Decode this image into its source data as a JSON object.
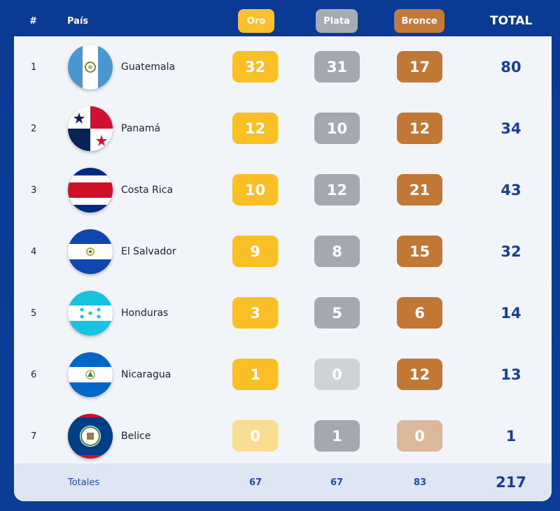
{
  "header": {
    "rank": "#",
    "country": "País",
    "gold": "Oro",
    "silver": "Plata",
    "bronze": "Bronce",
    "total": "TOTAL"
  },
  "rows": [
    {
      "rank": "1",
      "country": "Guatemala",
      "gold": "32",
      "silver": "31",
      "bronze": "17",
      "total": "80"
    },
    {
      "rank": "2",
      "country": "Panamá",
      "gold": "12",
      "silver": "10",
      "bronze": "12",
      "total": "34"
    },
    {
      "rank": "3",
      "country": "Costa Rica",
      "gold": "10",
      "silver": "12",
      "bronze": "21",
      "total": "43"
    },
    {
      "rank": "4",
      "country": "El Salvador",
      "gold": "9",
      "silver": "8",
      "bronze": "15",
      "total": "32"
    },
    {
      "rank": "5",
      "country": "Honduras",
      "gold": "3",
      "silver": "5",
      "bronze": "6",
      "total": "14"
    },
    {
      "rank": "6",
      "country": "Nicaragua",
      "gold": "1",
      "silver": "0",
      "bronze": "12",
      "total": "13"
    },
    {
      "rank": "7",
      "country": "Belice",
      "gold": "0",
      "silver": "1",
      "bronze": "0",
      "total": "1"
    }
  ],
  "footer": {
    "label": "Totales",
    "gold": "67",
    "silver": "67",
    "bronze": "83",
    "total": "217"
  },
  "colors": {
    "background": "#0b3a8f",
    "gold": "#fbbf26",
    "silver": "#a5a9af",
    "bronze": "#c07834",
    "total_text": "#173f96"
  }
}
